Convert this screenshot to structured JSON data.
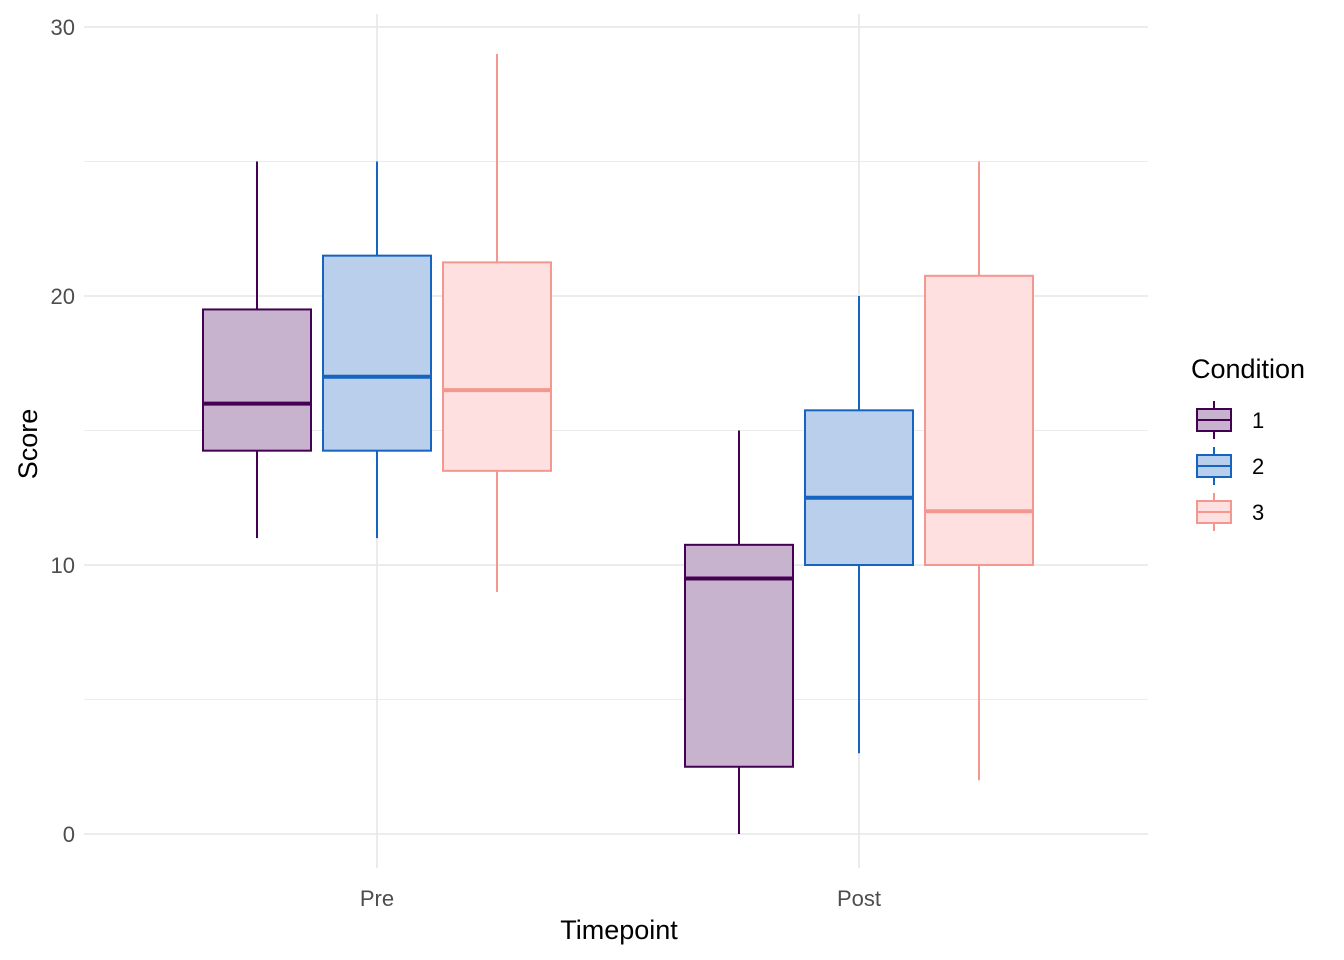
{
  "chart_data": {
    "type": "boxplot",
    "title": "",
    "xlabel": "Timepoint",
    "ylabel": "Score",
    "ylim": [
      -1.3,
      30.5
    ],
    "yticks": [
      0,
      10,
      20,
      30
    ],
    "grid": true,
    "legend": {
      "title": "Condition",
      "position": "right"
    },
    "categories": [
      "Pre",
      "Post"
    ],
    "series": [
      {
        "name": "1",
        "color": "#440154",
        "fill": "#c7b3cd",
        "boxes": [
          {
            "category": "Pre",
            "min": 11,
            "q1": 14.25,
            "median": 16,
            "q3": 19.5,
            "max": 25
          },
          {
            "category": "Post",
            "min": 0,
            "q1": 2.5,
            "median": 9.5,
            "q3": 10.75,
            "max": 15
          }
        ]
      },
      {
        "name": "2",
        "color": "#1565c0",
        "fill": "#b9cfec",
        "boxes": [
          {
            "category": "Pre",
            "min": 11,
            "q1": 14.25,
            "median": 17,
            "q3": 21.5,
            "max": 25
          },
          {
            "category": "Post",
            "min": 3,
            "q1": 10,
            "median": 12.5,
            "q3": 15.75,
            "max": 20
          }
        ]
      },
      {
        "name": "3",
        "color": "#f4978e",
        "fill": "#fde0df",
        "boxes": [
          {
            "category": "Pre",
            "min": 9,
            "q1": 13.5,
            "median": 16.5,
            "q3": 21.25,
            "max": 29
          },
          {
            "category": "Post",
            "min": 2,
            "q1": 10,
            "median": 12,
            "q3": 20.75,
            "max": 25
          }
        ]
      }
    ]
  }
}
